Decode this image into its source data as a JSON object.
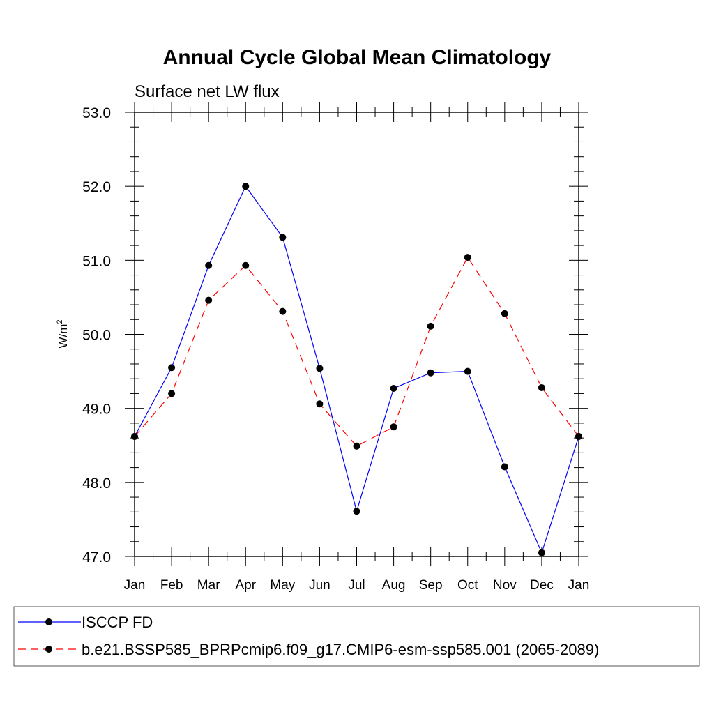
{
  "chart_data": {
    "type": "line",
    "title": "Annual Cycle Global Mean Climatology",
    "subtitle": "Surface net LW flux",
    "ylabel": "W/m",
    "ylabel_sup": "2",
    "xlabel": "",
    "categories": [
      "Jan",
      "Feb",
      "Mar",
      "Apr",
      "May",
      "Jun",
      "Jul",
      "Aug",
      "Sep",
      "Oct",
      "Nov",
      "Dec",
      "Jan"
    ],
    "ylim": [
      47.0,
      53.0
    ],
    "yticks": [
      "47.0",
      "48.0",
      "49.0",
      "50.0",
      "51.0",
      "52.0",
      "53.0"
    ],
    "grid": false,
    "legend_position": "bottom",
    "series": [
      {
        "name": "ISCCP FD",
        "color": "#0000ff",
        "dash": "solid",
        "values": [
          48.62,
          49.55,
          50.93,
          52.0,
          51.31,
          49.54,
          47.61,
          49.27,
          49.48,
          49.5,
          48.21,
          47.05,
          48.62
        ]
      },
      {
        "name": "b.e21.BSSP585_BPRPcmip6.f09_g17.CMIP6-esm-ssp585.001 (2065-2089)",
        "color": "#ff0000",
        "dash": "dashed",
        "values": [
          48.62,
          49.2,
          50.46,
          50.93,
          50.31,
          49.06,
          48.49,
          48.75,
          50.11,
          51.04,
          50.28,
          49.28,
          48.62
        ]
      }
    ]
  }
}
